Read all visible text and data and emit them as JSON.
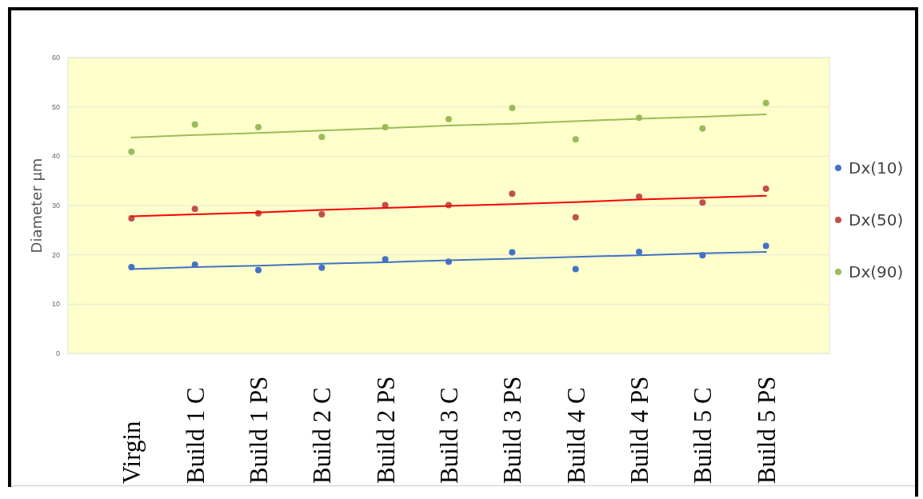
{
  "chart_data": {
    "type": "scatter",
    "ylabel": "Diameter µm",
    "categories": [
      "Virgin",
      "Build 1 C",
      "Build 1 PS",
      "Build 2 C",
      "Build 2 PS",
      "Build 3 C",
      "Build 3 PS",
      "Build 4 C",
      "Build 4 PS",
      "Build 5 C",
      "Build 5 PS"
    ],
    "ylim": [
      0,
      60
    ],
    "yticks": [
      0,
      10,
      20,
      30,
      40,
      50,
      60
    ],
    "grid": "y",
    "legend": "right",
    "marker": "circle",
    "series": [
      {
        "name": "Dx(10)",
        "color": "#4472c4",
        "values": [
          17.5,
          18.0,
          16.9,
          17.4,
          19.1,
          18.6,
          20.5,
          17.1,
          20.6,
          19.9,
          21.8
        ]
      },
      {
        "name": "Dx(50)",
        "color": "#c0504d",
        "values": [
          27.4,
          29.3,
          28.4,
          28.2,
          30.1,
          30.1,
          32.4,
          27.6,
          31.8,
          30.6,
          33.4
        ]
      },
      {
        "name": "Dx(90)",
        "color": "#9bbb59",
        "values": [
          40.9,
          46.4,
          45.9,
          43.9,
          45.9,
          47.5,
          49.8,
          43.4,
          47.8,
          45.6,
          50.8
        ]
      },
      {
        "type": "line",
        "marker": "none",
        "color": "#4472c4",
        "values": [
          17.1,
          17.5,
          17.8,
          18.2,
          18.5,
          18.9,
          19.2,
          19.6,
          19.9,
          20.3,
          20.6
        ]
      },
      {
        "type": "line",
        "marker": "none",
        "color": "#ff0000",
        "values": [
          27.8,
          28.2,
          28.6,
          29.1,
          29.5,
          29.9,
          30.3,
          30.7,
          31.2,
          31.6,
          32.0
        ]
      },
      {
        "type": "line",
        "marker": "none",
        "color": "#9bbb59",
        "values": [
          43.8,
          44.3,
          44.7,
          45.2,
          45.7,
          46.2,
          46.6,
          47.1,
          47.6,
          48.0,
          48.5
        ]
      }
    ]
  }
}
